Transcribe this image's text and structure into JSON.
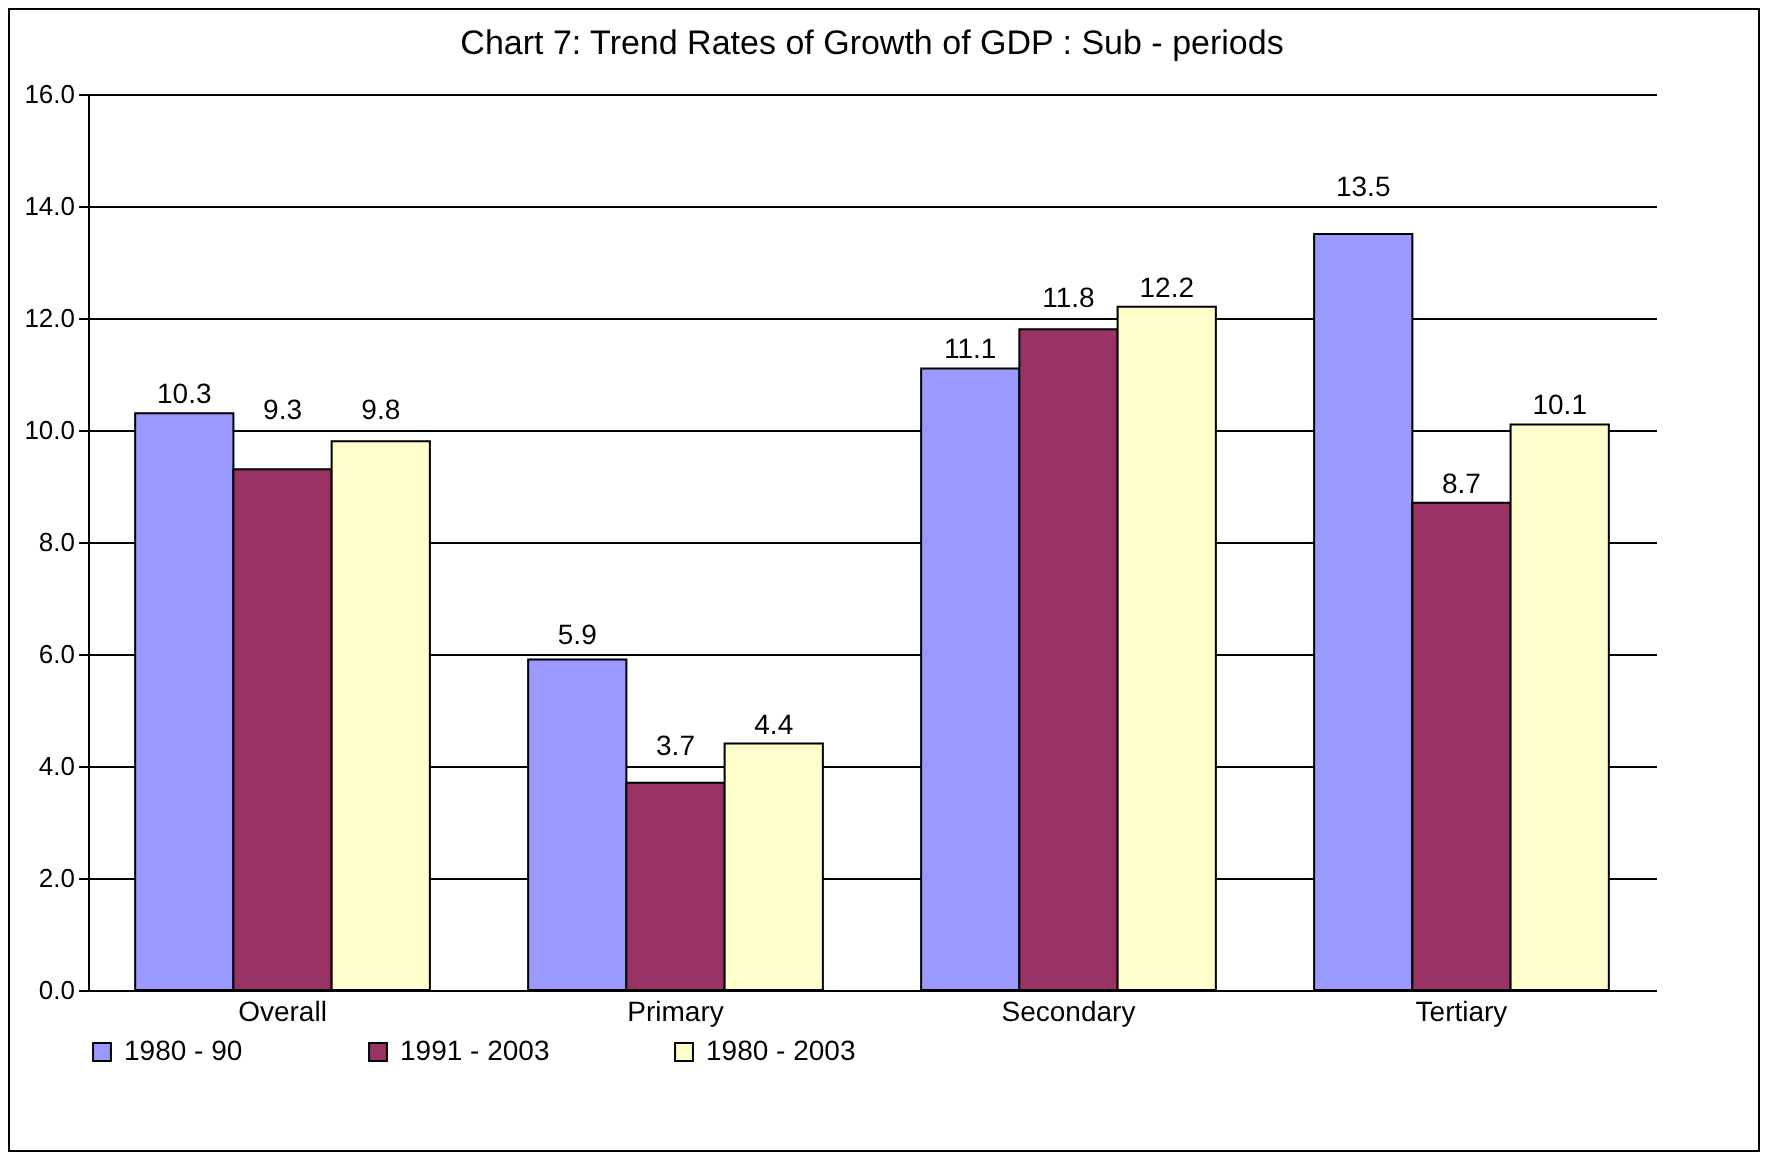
{
  "chart_data": {
    "type": "bar",
    "title": "Chart 7: Trend Rates of Growth of GDP : Sub - periods",
    "categories": [
      "Overall",
      "Primary",
      "Secondary",
      "Tertiary"
    ],
    "series": [
      {
        "name": "1980 - 90",
        "color": "#9999ff",
        "values": [
          10.3,
          5.9,
          11.1,
          13.5
        ]
      },
      {
        "name": "1991 - 2003",
        "color": "#993366",
        "values": [
          9.3,
          3.7,
          11.8,
          8.7
        ]
      },
      {
        "name": "1980 - 2003",
        "color": "#ffffcc",
        "values": [
          9.8,
          4.4,
          12.2,
          10.1
        ]
      }
    ],
    "ylim": [
      0,
      16
    ],
    "yticks": [
      {
        "value": 0,
        "label": "0.0"
      },
      {
        "value": 2,
        "label": "2.0"
      },
      {
        "value": 4,
        "label": "4.0"
      },
      {
        "value": 6,
        "label": "6.0"
      },
      {
        "value": 8,
        "label": "8.0"
      },
      {
        "value": 10,
        "label": "10.0"
      },
      {
        "value": 12,
        "label": "12.0"
      },
      {
        "value": 14,
        "label": "14.0"
      },
      {
        "value": 16,
        "label": "16.0"
      }
    ],
    "grid": "y",
    "legend": "bottom",
    "data_labels": true
  }
}
